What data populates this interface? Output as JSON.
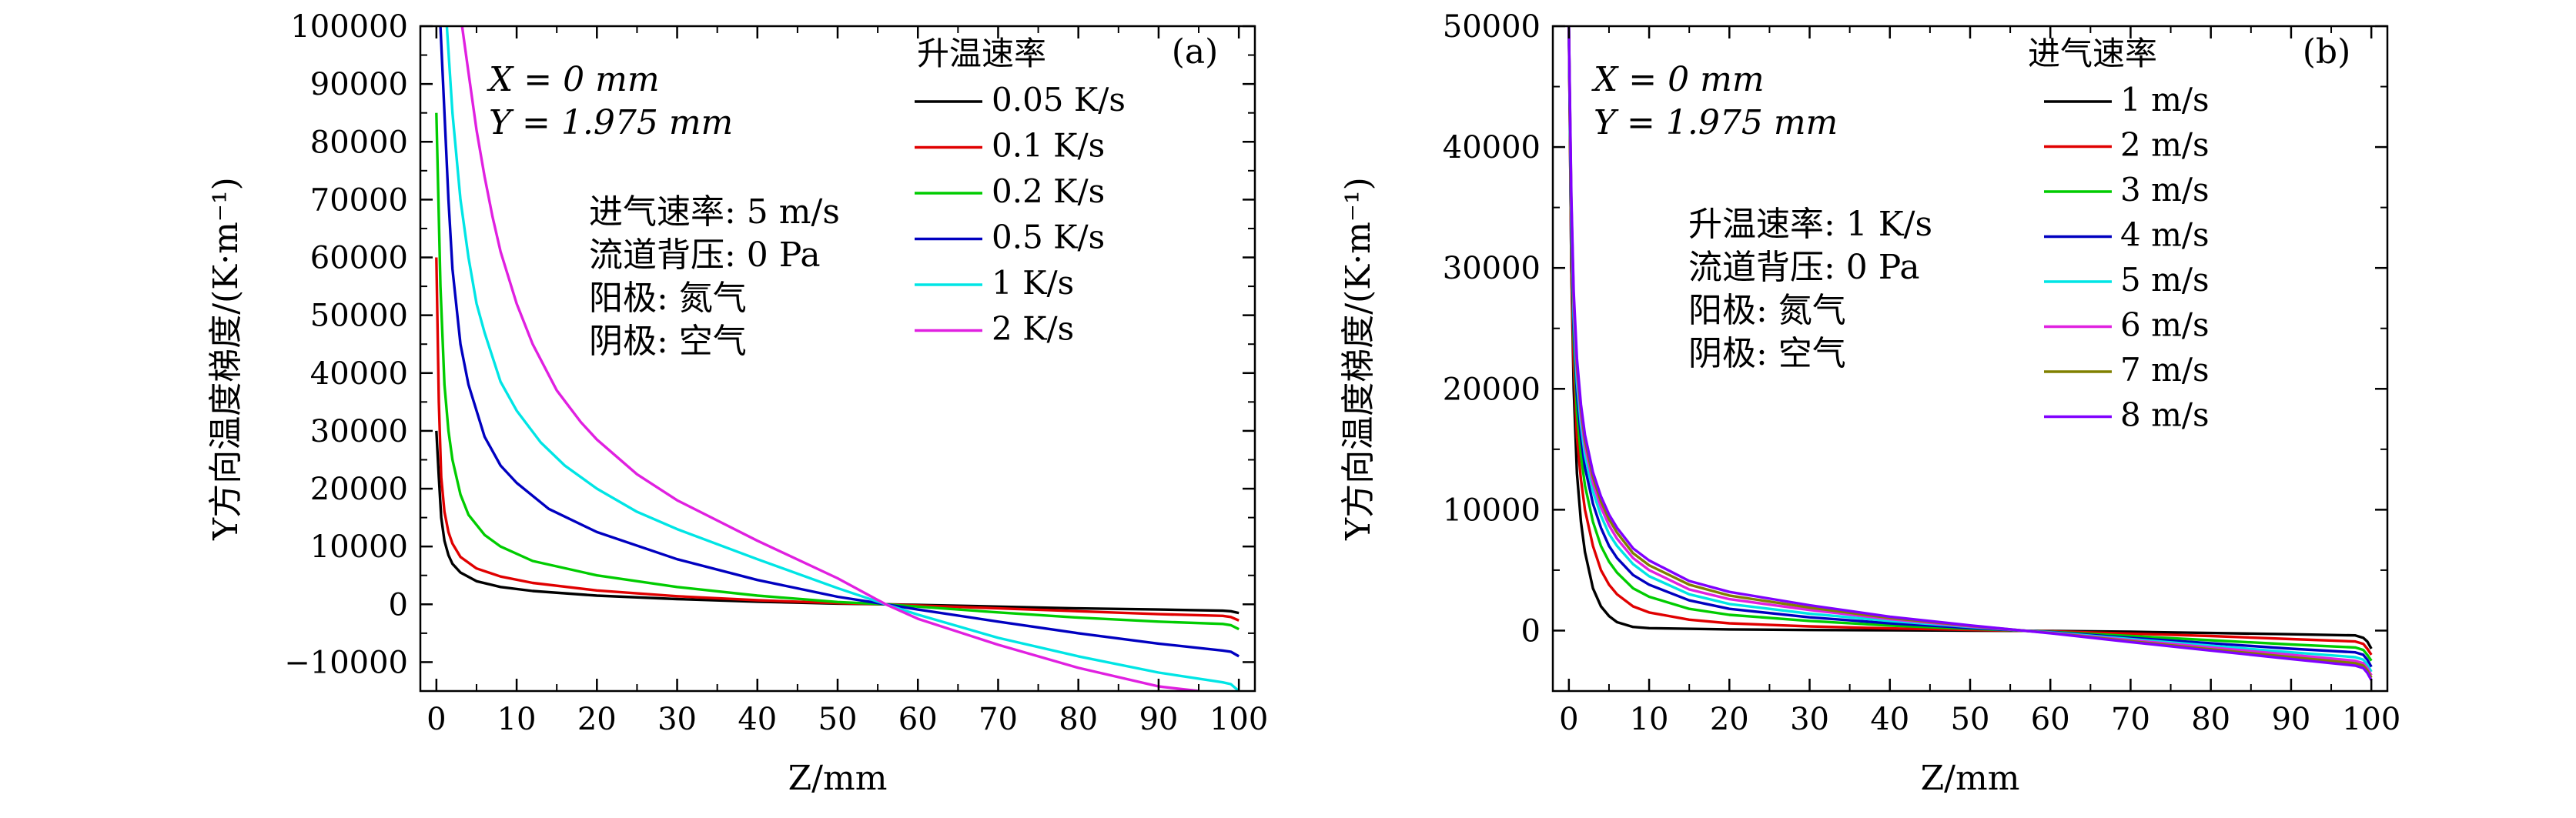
{
  "chart_data": [
    {
      "type": "line",
      "panel_label": "(a)",
      "xlabel": "Z/mm",
      "ylabel": "Y方向温度梯度/(K·m⁻¹)",
      "xlim": [
        -2,
        102
      ],
      "ylim": [
        -15000,
        100000
      ],
      "xticks": [
        "0",
        "10",
        "20",
        "30",
        "40",
        "50",
        "60",
        "70",
        "80",
        "90",
        "100"
      ],
      "yticks": [
        "−10000",
        "0",
        "10000",
        "20000",
        "30000",
        "40000",
        "50000",
        "60000",
        "70000",
        "80000",
        "90000",
        "100000"
      ],
      "annotations": [
        "X = 0 mm",
        "Y = 1.975 mm",
        "进气速率: 5 m/s",
        "流道背压: 0 Pa",
        "阳极: 氮气",
        "阴极: 空气"
      ],
      "legend_title": "升温速率",
      "series": [
        {
          "name": "0.05 K/s",
          "color": "#000000",
          "x": [
            0,
            0.3,
            0.6,
            1,
            1.5,
            2,
            3,
            5,
            8,
            12,
            20,
            30,
            40,
            50,
            56,
            60,
            70,
            80,
            90,
            98,
            99,
            100
          ],
          "y": [
            30000,
            22000,
            15000,
            11000,
            8500,
            7000,
            5500,
            4000,
            3000,
            2300,
            1500,
            900,
            450,
            120,
            0,
            -100,
            -400,
            -700,
            -900,
            -1100,
            -1200,
            -1500
          ]
        },
        {
          "name": "0.1 K/s",
          "color": "#e00000",
          "x": [
            0,
            0.3,
            0.6,
            1,
            1.5,
            2,
            3,
            5,
            8,
            12,
            20,
            30,
            40,
            50,
            56,
            60,
            70,
            80,
            90,
            98,
            99,
            100
          ],
          "y": [
            60000,
            35000,
            22000,
            16000,
            12500,
            10500,
            8200,
            6200,
            4800,
            3700,
            2400,
            1400,
            700,
            200,
            0,
            -200,
            -700,
            -1200,
            -1700,
            -2000,
            -2200,
            -2800
          ]
        },
        {
          "name": "0.2 K/s",
          "color": "#00cc00",
          "x": [
            0,
            0.5,
            1,
            1.5,
            2,
            3,
            4,
            6,
            8,
            12,
            20,
            30,
            40,
            50,
            56,
            60,
            70,
            80,
            90,
            98,
            99,
            100
          ],
          "y": [
            85000,
            55000,
            38000,
            30000,
            25000,
            19000,
            15500,
            12000,
            10000,
            7500,
            5000,
            3000,
            1500,
            400,
            0,
            -400,
            -1400,
            -2300,
            -3000,
            -3400,
            -3600,
            -4300
          ]
        },
        {
          "name": "0.5 K/s",
          "color": "#0000c0",
          "x": [
            0.5,
            1,
            1.5,
            2,
            3,
            4,
            6,
            8,
            10,
            14,
            20,
            30,
            40,
            50,
            56,
            60,
            70,
            80,
            90,
            98,
            99,
            100
          ],
          "y": [
            100000,
            85000,
            70000,
            58000,
            45000,
            38000,
            29000,
            24000,
            21000,
            16500,
            12500,
            7800,
            4200,
            1300,
            0,
            -900,
            -3000,
            -5000,
            -6800,
            -8000,
            -8200,
            -9000
          ]
        },
        {
          "name": "1 K/s",
          "color": "#00e5e5",
          "x": [
            1.3,
            2,
            3,
            4,
            5,
            6,
            8,
            10,
            13,
            16,
            20,
            25,
            30,
            40,
            50,
            56,
            60,
            70,
            80,
            90,
            98,
            99,
            100
          ],
          "y": [
            100000,
            85000,
            70000,
            60000,
            52000,
            47000,
            38500,
            33500,
            28000,
            24000,
            20000,
            16000,
            13000,
            7800,
            2800,
            0,
            -1800,
            -5800,
            -9000,
            -11800,
            -13500,
            -13800,
            -15000
          ]
        },
        {
          "name": "2 K/s",
          "color": "#e020e0",
          "x": [
            3.2,
            4,
            5,
            6,
            7,
            8,
            10,
            12,
            15,
            18,
            20,
            25,
            30,
            35,
            40,
            50,
            56,
            60,
            70,
            80,
            90,
            95
          ],
          "y": [
            100000,
            92000,
            82000,
            74000,
            67000,
            61000,
            52000,
            45000,
            37000,
            31500,
            28500,
            22500,
            18000,
            14500,
            11000,
            4500,
            0,
            -2500,
            -7000,
            -11000,
            -14200,
            -15000
          ]
        }
      ]
    },
    {
      "type": "line",
      "panel_label": "(b)",
      "xlabel": "Z/mm",
      "ylabel": "Y方向温度梯度/(K·m⁻¹)",
      "xlim": [
        -2,
        102
      ],
      "ylim": [
        -5000,
        50000
      ],
      "xticks": [
        "0",
        "10",
        "20",
        "30",
        "40",
        "50",
        "60",
        "70",
        "80",
        "90",
        "100"
      ],
      "yticks": [
        "0",
        "10000",
        "20000",
        "30000",
        "40000",
        "50000"
      ],
      "annotations": [
        "X = 0 mm",
        "Y = 1.975 mm",
        "升温速率: 1 K/s",
        "流道背压: 0 Pa",
        "阳极: 氮气",
        "阴极: 空气"
      ],
      "legend_title": "进气速率",
      "series": [
        {
          "name": "1 m/s",
          "color": "#000000",
          "x": [
            0,
            0.3,
            0.6,
            1,
            1.5,
            2,
            3,
            4,
            5,
            6,
            8,
            10,
            20,
            30,
            40,
            50,
            60,
            70,
            80,
            90,
            98,
            99,
            99.5,
            100
          ],
          "y": [
            50000,
            30000,
            20000,
            13000,
            9000,
            6500,
            3500,
            2000,
            1200,
            700,
            300,
            200,
            100,
            50,
            20,
            0,
            -30,
            -100,
            -200,
            -300,
            -400,
            -600,
            -900,
            -1500
          ]
        },
        {
          "name": "2 m/s",
          "color": "#e00000",
          "x": [
            0,
            0.3,
            0.6,
            1,
            1.5,
            2,
            3,
            4,
            5,
            6,
            8,
            10,
            15,
            20,
            30,
            40,
            50,
            60,
            70,
            80,
            90,
            98,
            99,
            99.5,
            100
          ],
          "y": [
            50000,
            30000,
            22000,
            16000,
            12500,
            10000,
            7000,
            5000,
            3800,
            3000,
            2000,
            1500,
            900,
            600,
            350,
            180,
            60,
            -60,
            -250,
            -450,
            -700,
            -900,
            -1100,
            -1500,
            -2000
          ]
        },
        {
          "name": "3 m/s",
          "color": "#00cc00",
          "x": [
            0,
            0.3,
            0.6,
            1,
            1.5,
            2,
            3,
            4,
            5,
            6,
            8,
            10,
            15,
            20,
            30,
            40,
            50,
            60,
            70,
            80,
            90,
            98,
            99,
            99.5,
            100
          ],
          "y": [
            50000,
            32000,
            24000,
            18000,
            14500,
            12000,
            9000,
            7000,
            5700,
            4800,
            3500,
            2800,
            1800,
            1300,
            800,
            420,
            150,
            -100,
            -450,
            -800,
            -1150,
            -1400,
            -1600,
            -2000,
            -2500
          ]
        },
        {
          "name": "4 m/s",
          "color": "#0000c0",
          "x": [
            0,
            0.3,
            0.6,
            1,
            1.5,
            2,
            3,
            4,
            5,
            6,
            8,
            10,
            15,
            20,
            30,
            40,
            50,
            60,
            70,
            80,
            90,
            98,
            99,
            99.5,
            100
          ],
          "y": [
            50000,
            33000,
            25000,
            19500,
            16000,
            13500,
            10500,
            8500,
            7000,
            6000,
            4600,
            3800,
            2500,
            1800,
            1100,
            600,
            220,
            -120,
            -600,
            -1050,
            -1500,
            -1800,
            -2000,
            -2400,
            -3000
          ]
        },
        {
          "name": "5 m/s",
          "color": "#00e5e5",
          "x": [
            0,
            0.3,
            0.6,
            1,
            1.5,
            2,
            3,
            4,
            5,
            6,
            8,
            10,
            15,
            20,
            30,
            40,
            50,
            60,
            70,
            80,
            90,
            98,
            99,
            99.5,
            100
          ],
          "y": [
            50000,
            34000,
            26000,
            20500,
            17000,
            14500,
            11500,
            9500,
            8000,
            7000,
            5500,
            4500,
            3000,
            2200,
            1400,
            800,
            300,
            -150,
            -700,
            -1250,
            -1800,
            -2200,
            -2400,
            -2800,
            -3400
          ]
        },
        {
          "name": "6 m/s",
          "color": "#e020e0",
          "x": [
            0,
            0.3,
            0.6,
            1,
            1.5,
            2,
            3,
            4,
            5,
            6,
            8,
            10,
            15,
            20,
            30,
            40,
            50,
            60,
            70,
            80,
            90,
            98,
            99,
            99.5,
            100
          ],
          "y": [
            50000,
            35000,
            27000,
            21500,
            17800,
            15300,
            12200,
            10200,
            8700,
            7600,
            6000,
            5000,
            3400,
            2600,
            1700,
            950,
            350,
            -180,
            -800,
            -1400,
            -2000,
            -2500,
            -2700,
            -3100,
            -3700
          ]
        },
        {
          "name": "7 m/s",
          "color": "#808000",
          "x": [
            0,
            0.3,
            0.6,
            1,
            1.5,
            2,
            3,
            4,
            5,
            6,
            8,
            10,
            15,
            20,
            30,
            40,
            50,
            60,
            70,
            80,
            90,
            98,
            99,
            99.5,
            100
          ],
          "y": [
            50000,
            35500,
            27500,
            22000,
            18300,
            15800,
            12700,
            10700,
            9200,
            8100,
            6400,
            5400,
            3800,
            2900,
            1900,
            1050,
            400,
            -200,
            -880,
            -1550,
            -2200,
            -2700,
            -2900,
            -3300,
            -3900
          ]
        },
        {
          "name": "8 m/s",
          "color": "#8000ff",
          "x": [
            0,
            0.3,
            0.6,
            1,
            1.5,
            2,
            3,
            4,
            5,
            6,
            8,
            10,
            15,
            20,
            30,
            40,
            50,
            60,
            70,
            80,
            90,
            98,
            99,
            99.5,
            100
          ],
          "y": [
            50000,
            36000,
            28000,
            22500,
            18700,
            16200,
            13100,
            11100,
            9600,
            8500,
            6800,
            5800,
            4100,
            3200,
            2100,
            1150,
            430,
            -220,
            -950,
            -1650,
            -2350,
            -2900,
            -3100,
            -3500,
            -4100
          ]
        }
      ]
    }
  ]
}
